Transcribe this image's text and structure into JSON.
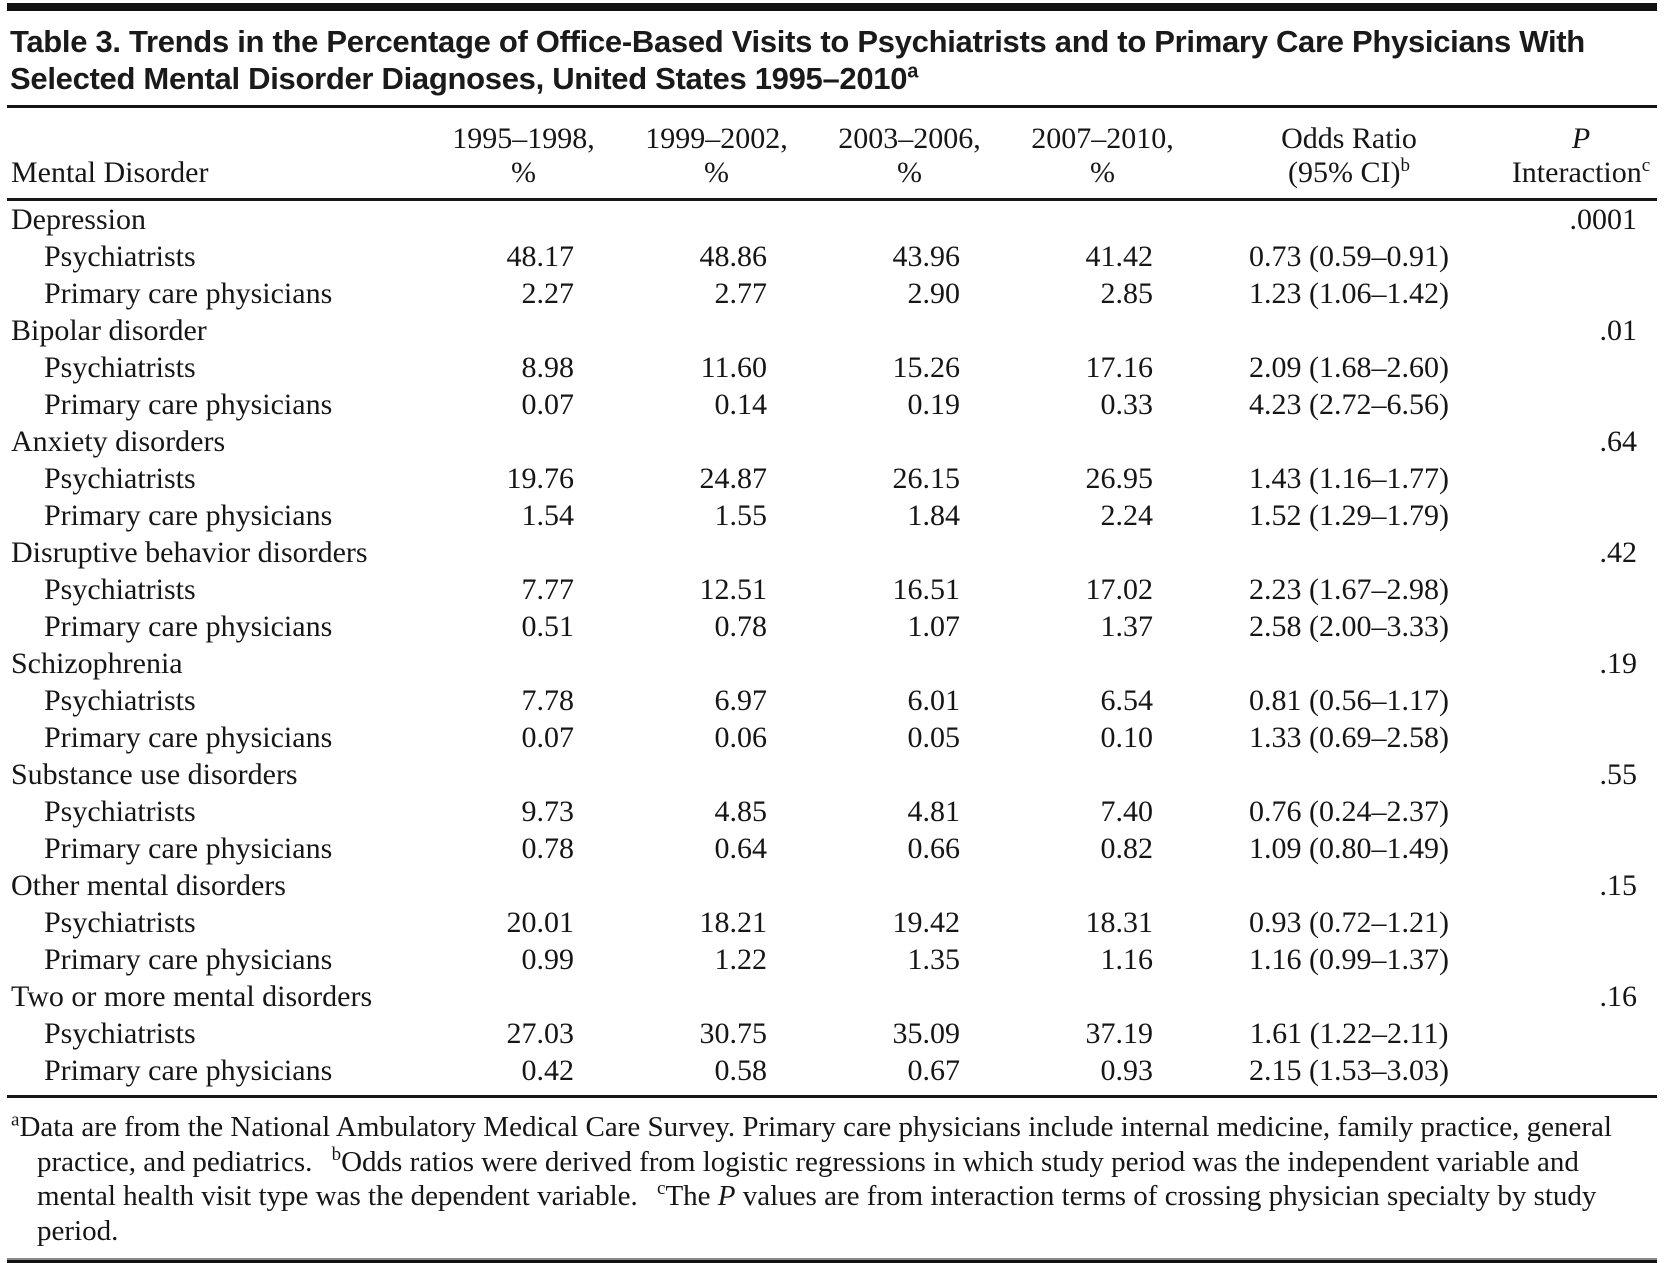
{
  "table": {
    "title": "Table 3. Trends in the Percentage of Office-Based Visits to Psychiatrists and to Primary Care Physicians With Selected Mental Disorder Diagnoses, United States 1995–2010",
    "title_sup": "a",
    "columns": [
      {
        "label": "Mental Disorder"
      },
      {
        "line1": "1995–1998,",
        "line2": "%"
      },
      {
        "line1": "1999–2002,",
        "line2": "%"
      },
      {
        "line1": "2003–2006,",
        "line2": "%"
      },
      {
        "line1": "2007–2010,",
        "line2": "%"
      },
      {
        "line1": "Odds Ratio",
        "line2": "(95% CI)",
        "sup": "b"
      },
      {
        "line1": "P",
        "line2": "Interaction",
        "sup": "c"
      }
    ],
    "sections": [
      {
        "label": "Depression",
        "p_interaction": ".0001",
        "rows": [
          {
            "label": "Psychiatrists",
            "values": [
              "48.17",
              "48.86",
              "43.96",
              "41.42"
            ],
            "odds_ratio": "0.73 (0.59–0.91)"
          },
          {
            "label": "Primary care physicians",
            "values": [
              "2.27",
              "2.77",
              "2.90",
              "2.85"
            ],
            "odds_ratio": "1.23 (1.06–1.42)"
          }
        ]
      },
      {
        "label": "Bipolar disorder",
        "p_interaction": ".01",
        "rows": [
          {
            "label": "Psychiatrists",
            "values": [
              "8.98",
              "11.60",
              "15.26",
              "17.16"
            ],
            "odds_ratio": "2.09 (1.68–2.60)"
          },
          {
            "label": "Primary care physicians",
            "values": [
              "0.07",
              "0.14",
              "0.19",
              "0.33"
            ],
            "odds_ratio": "4.23 (2.72–6.56)"
          }
        ]
      },
      {
        "label": "Anxiety disorders",
        "p_interaction": ".64",
        "rows": [
          {
            "label": "Psychiatrists",
            "values": [
              "19.76",
              "24.87",
              "26.15",
              "26.95"
            ],
            "odds_ratio": "1.43 (1.16–1.77)"
          },
          {
            "label": "Primary care physicians",
            "values": [
              "1.54",
              "1.55",
              "1.84",
              "2.24"
            ],
            "odds_ratio": "1.52 (1.29–1.79)"
          }
        ]
      },
      {
        "label": "Disruptive behavior disorders",
        "p_interaction": ".42",
        "rows": [
          {
            "label": "Psychiatrists",
            "values": [
              "7.77",
              "12.51",
              "16.51",
              "17.02"
            ],
            "odds_ratio": "2.23 (1.67–2.98)"
          },
          {
            "label": "Primary care physicians",
            "values": [
              "0.51",
              "0.78",
              "1.07",
              "1.37"
            ],
            "odds_ratio": "2.58 (2.00–3.33)"
          }
        ]
      },
      {
        "label": "Schizophrenia",
        "p_interaction": ".19",
        "rows": [
          {
            "label": "Psychiatrists",
            "values": [
              "7.78",
              "6.97",
              "6.01",
              "6.54"
            ],
            "odds_ratio": "0.81 (0.56–1.17)"
          },
          {
            "label": "Primary care physicians",
            "values": [
              "0.07",
              "0.06",
              "0.05",
              "0.10"
            ],
            "odds_ratio": "1.33 (0.69–2.58)"
          }
        ]
      },
      {
        "label": "Substance use disorders",
        "p_interaction": ".55",
        "rows": [
          {
            "label": "Psychiatrists",
            "values": [
              "9.73",
              "4.85",
              "4.81",
              "7.40"
            ],
            "odds_ratio": "0.76 (0.24–2.37)"
          },
          {
            "label": "Primary care physicians",
            "values": [
              "0.78",
              "0.64",
              "0.66",
              "0.82"
            ],
            "odds_ratio": "1.09 (0.80–1.49)"
          }
        ]
      },
      {
        "label": "Other mental disorders",
        "p_interaction": ".15",
        "rows": [
          {
            "label": "Psychiatrists",
            "values": [
              "20.01",
              "18.21",
              "19.42",
              "18.31"
            ],
            "odds_ratio": "0.93 (0.72–1.21)"
          },
          {
            "label": "Primary care physicians",
            "values": [
              "0.99",
              "1.22",
              "1.35",
              "1.16"
            ],
            "odds_ratio": "1.16 (0.99–1.37)"
          }
        ]
      },
      {
        "label": "Two or more mental disorders",
        "p_interaction": ".16",
        "rows": [
          {
            "label": "Psychiatrists",
            "values": [
              "27.03",
              "30.75",
              "35.09",
              "37.19"
            ],
            "odds_ratio": "1.61 (1.22–2.11)"
          },
          {
            "label": "Primary care physicians",
            "values": [
              "0.42",
              "0.58",
              "0.67",
              "0.93"
            ],
            "odds_ratio": "2.15 (1.53–3.03)"
          }
        ]
      }
    ],
    "footnotes": [
      {
        "sup": "a",
        "text": "Data are from the National Ambulatory Medical Care Survey. Primary care physicians include internal medicine, family practice, general practice, and pediatrics."
      },
      {
        "sup": "b",
        "text": "Odds ratios were derived from logistic regressions in which study period was the independent variable and mental health visit type was the dependent variable."
      },
      {
        "sup": "c",
        "text_pre": "The ",
        "italic": "P",
        "text_post": " values are from interaction terms of crossing physician specialty by study period."
      }
    ]
  }
}
